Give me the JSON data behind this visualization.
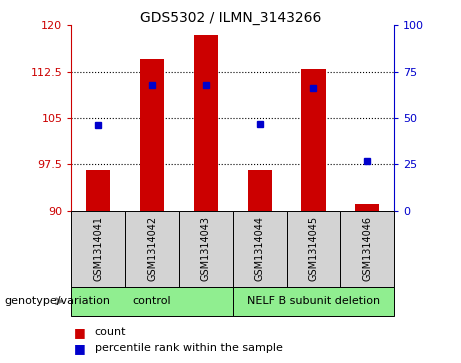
{
  "title": "GDS5302 / ILMN_3143266",
  "samples": [
    "GSM1314041",
    "GSM1314042",
    "GSM1314043",
    "GSM1314044",
    "GSM1314045",
    "GSM1314046"
  ],
  "counts": [
    96.5,
    114.5,
    118.5,
    96.5,
    113.0,
    91.0
  ],
  "percentiles": [
    46,
    68,
    68,
    47,
    66,
    27
  ],
  "ylim_left": [
    90,
    120
  ],
  "ylim_right": [
    0,
    100
  ],
  "yticks_left": [
    90,
    97.5,
    105,
    112.5,
    120
  ],
  "yticks_right": [
    0,
    25,
    50,
    75,
    100
  ],
  "bar_color": "#cc0000",
  "dot_color": "#0000cc",
  "bar_width": 0.45,
  "group_label": "genotype/variation",
  "legend_count_label": "count",
  "legend_pct_label": "percentile rank within the sample",
  "background_color": "#ffffff",
  "sample_box_color": "#d3d3d3",
  "group_green": "#90ee90"
}
